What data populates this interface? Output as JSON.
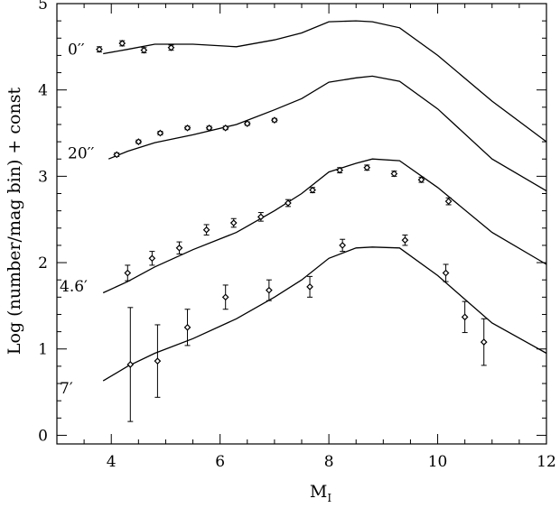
{
  "chart_data": {
    "type": "scatter",
    "title": "",
    "xlabel": "M",
    "xlabel_subscript": "I",
    "ylabel": "Log (number/mag bin) + const",
    "xlim": [
      3,
      12
    ],
    "ylim": [
      -0.1,
      5
    ],
    "xticks": [
      4,
      6,
      8,
      10,
      12
    ],
    "xtick_labels": [
      "4",
      "6",
      "8",
      "10",
      "12"
    ],
    "yticks": [
      0,
      1,
      2,
      3,
      4,
      5
    ],
    "ytick_labels": [
      "0",
      "1",
      "2",
      "3",
      "4",
      "5"
    ],
    "grid": false,
    "legend": "none",
    "series": [
      {
        "label": "0′′",
        "label_pos": [
          3.2,
          4.47
        ],
        "model_x": [
          3.85,
          4.3,
          4.8,
          5.5,
          6.3,
          7.0,
          7.5,
          8.0,
          8.5,
          8.8,
          9.3,
          10.0,
          11.0,
          12.0
        ],
        "model_y": [
          4.42,
          4.47,
          4.53,
          4.53,
          4.5,
          4.58,
          4.66,
          4.79,
          4.8,
          4.79,
          4.72,
          4.4,
          3.87,
          3.4
        ],
        "points": [
          {
            "x": 3.78,
            "y": 4.47,
            "err": 0.03
          },
          {
            "x": 4.2,
            "y": 4.54,
            "err": 0.03
          },
          {
            "x": 4.6,
            "y": 4.46,
            "err": 0.03
          },
          {
            "x": 5.1,
            "y": 4.49,
            "err": 0.03
          }
        ]
      },
      {
        "label": "20′′",
        "label_pos": [
          3.2,
          3.27
        ],
        "model_x": [
          3.95,
          4.3,
          4.8,
          5.5,
          6.3,
          7.0,
          7.5,
          8.0,
          8.5,
          8.8,
          9.3,
          10.0,
          11.0,
          12.0
        ],
        "model_y": [
          3.2,
          3.29,
          3.39,
          3.48,
          3.6,
          3.77,
          3.9,
          4.09,
          4.14,
          4.16,
          4.1,
          3.78,
          3.2,
          2.83
        ],
        "points": [
          {
            "x": 4.1,
            "y": 3.25,
            "err": 0.02
          },
          {
            "x": 4.5,
            "y": 3.4,
            "err": 0.02
          },
          {
            "x": 4.9,
            "y": 3.5,
            "err": 0.02
          },
          {
            "x": 5.4,
            "y": 3.56,
            "err": 0.02
          },
          {
            "x": 5.8,
            "y": 3.56,
            "err": 0.02
          },
          {
            "x": 6.1,
            "y": 3.56,
            "err": 0.02
          },
          {
            "x": 6.5,
            "y": 3.61,
            "err": 0.02
          },
          {
            "x": 7.0,
            "y": 3.65,
            "err": 0.02
          }
        ]
      },
      {
        "label": "4.6′",
        "label_pos": [
          3.05,
          1.73
        ],
        "model_x": [
          3.85,
          4.3,
          4.8,
          5.5,
          6.3,
          7.0,
          7.5,
          8.0,
          8.5,
          8.8,
          9.3,
          10.0,
          11.0,
          12.0
        ],
        "model_y": [
          1.65,
          1.78,
          1.95,
          2.15,
          2.35,
          2.6,
          2.8,
          3.05,
          3.15,
          3.2,
          3.18,
          2.87,
          2.35,
          1.98
        ],
        "points": [
          {
            "x": 4.3,
            "y": 1.88,
            "err": 0.09
          },
          {
            "x": 4.75,
            "y": 2.05,
            "err": 0.08
          },
          {
            "x": 5.25,
            "y": 2.17,
            "err": 0.07
          },
          {
            "x": 5.75,
            "y": 2.38,
            "err": 0.06
          },
          {
            "x": 6.25,
            "y": 2.46,
            "err": 0.05
          },
          {
            "x": 6.75,
            "y": 2.53,
            "err": 0.05
          },
          {
            "x": 7.25,
            "y": 2.69,
            "err": 0.04
          },
          {
            "x": 7.7,
            "y": 2.84,
            "err": 0.03
          },
          {
            "x": 8.2,
            "y": 3.07,
            "err": 0.03
          },
          {
            "x": 8.7,
            "y": 3.1,
            "err": 0.03
          },
          {
            "x": 9.2,
            "y": 3.03,
            "err": 0.03
          },
          {
            "x": 9.7,
            "y": 2.96,
            "err": 0.03
          },
          {
            "x": 10.2,
            "y": 2.71,
            "err": 0.04
          }
        ]
      },
      {
        "label": "7′",
        "label_pos": [
          3.05,
          0.55
        ],
        "model_x": [
          3.85,
          4.3,
          4.8,
          5.5,
          6.3,
          7.0,
          7.5,
          8.0,
          8.5,
          8.8,
          9.3,
          10.0,
          11.0,
          12.0
        ],
        "model_y": [
          0.63,
          0.8,
          0.95,
          1.12,
          1.35,
          1.6,
          1.8,
          2.05,
          2.17,
          2.18,
          2.17,
          1.85,
          1.3,
          0.95
        ],
        "points": [
          {
            "x": 4.35,
            "y": 0.82,
            "err": 0.66
          },
          {
            "x": 4.85,
            "y": 0.86,
            "err": 0.42
          },
          {
            "x": 5.4,
            "y": 1.25,
            "err": 0.21
          },
          {
            "x": 6.1,
            "y": 1.6,
            "err": 0.14
          },
          {
            "x": 6.9,
            "y": 1.68,
            "err": 0.12
          },
          {
            "x": 7.65,
            "y": 1.72,
            "err": 0.12
          },
          {
            "x": 8.25,
            "y": 2.2,
            "err": 0.07
          },
          {
            "x": 9.4,
            "y": 2.26,
            "err": 0.06
          },
          {
            "x": 10.15,
            "y": 1.88,
            "err": 0.1
          },
          {
            "x": 10.5,
            "y": 1.37,
            "err": 0.18
          },
          {
            "x": 10.85,
            "y": 1.08,
            "err": 0.27
          }
        ]
      }
    ]
  }
}
